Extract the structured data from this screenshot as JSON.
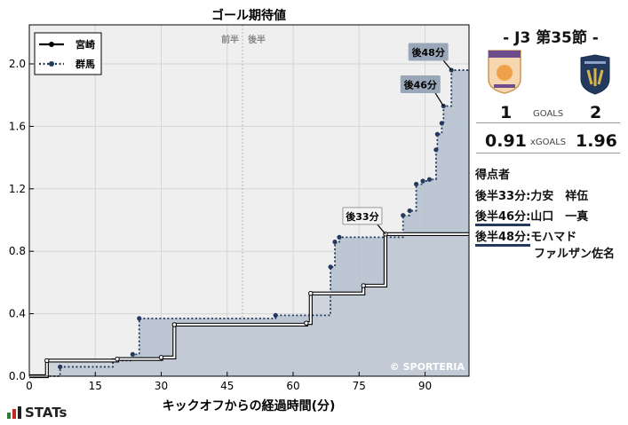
{
  "chart_data": {
    "type": "line",
    "title": "ゴール期待値",
    "xlabel": "キックオフからの経過時間(分)",
    "ylabel": "",
    "xlim": [
      0,
      100
    ],
    "ylim": [
      0,
      2.25
    ],
    "xticks": [
      0,
      15,
      30,
      45,
      60,
      75,
      90
    ],
    "yticks": [
      0.0,
      0.4,
      0.8,
      1.2,
      1.6,
      2.0
    ],
    "xtick_labels": [
      "0",
      "15",
      "30",
      "45",
      "60",
      "75",
      "90"
    ],
    "ytick_labels": [
      "0.0",
      "0.4",
      "0.8",
      "1.2",
      "1.6",
      "2.0"
    ],
    "grid": true,
    "half_line": 48.5,
    "half_labels": [
      "前半",
      "後半"
    ],
    "legend_position": "top-left",
    "series": [
      {
        "name": "宮崎",
        "style": "solid",
        "x": [
          4,
          20,
          30,
          33,
          63,
          64,
          76,
          81,
          100
        ],
        "y": [
          0.1,
          0.11,
          0.12,
          0.33,
          0.34,
          0.53,
          0.58,
          0.91,
          0.91
        ]
      },
      {
        "name": "群馬",
        "style": "dotted",
        "x": [
          7,
          19,
          23.5,
          25,
          56,
          68.5,
          69.5,
          70.5,
          85,
          86.5,
          88,
          89.5,
          91,
          92.5,
          92.8,
          93.8,
          94.2,
          96,
          100
        ],
        "y": [
          0.06,
          0.1,
          0.14,
          0.37,
          0.39,
          0.7,
          0.86,
          0.89,
          1.03,
          1.06,
          1.23,
          1.25,
          1.26,
          1.45,
          1.55,
          1.62,
          1.73,
          1.96,
          1.96
        ]
      }
    ],
    "annotations": [
      {
        "label": "後33分",
        "x": 81,
        "y": 0.91,
        "series": 0
      },
      {
        "label": "後46分",
        "x": 94.2,
        "y": 1.73,
        "series": 1
      },
      {
        "label": "後48分",
        "x": 96,
        "y": 1.96,
        "series": 1
      }
    ],
    "watermark": "© SPORTERIA"
  },
  "match": {
    "title": "-  J3 第35節  -",
    "home_score": "1",
    "away_score": "2",
    "goals_label": "GOALS",
    "home_xg": "0.91",
    "away_xg": "1.96",
    "xg_label": "xGOALS",
    "home_crest": "shield-crest",
    "away_crest": "shield-crest",
    "home_color": "#f0a24a",
    "away_color": "#233a5e"
  },
  "scorers": {
    "title": "得点者",
    "items": [
      {
        "time": "後半33分:",
        "name": "力安　祥伍",
        "name2": "",
        "team": "home"
      },
      {
        "time": "後半46分:",
        "name": "山口　一真",
        "name2": "",
        "team": "away"
      },
      {
        "time": "後半48分:",
        "name": "モハマド",
        "name2": "ファルザン佐名",
        "team": "away"
      }
    ]
  },
  "brand": {
    "label": "STATs"
  }
}
